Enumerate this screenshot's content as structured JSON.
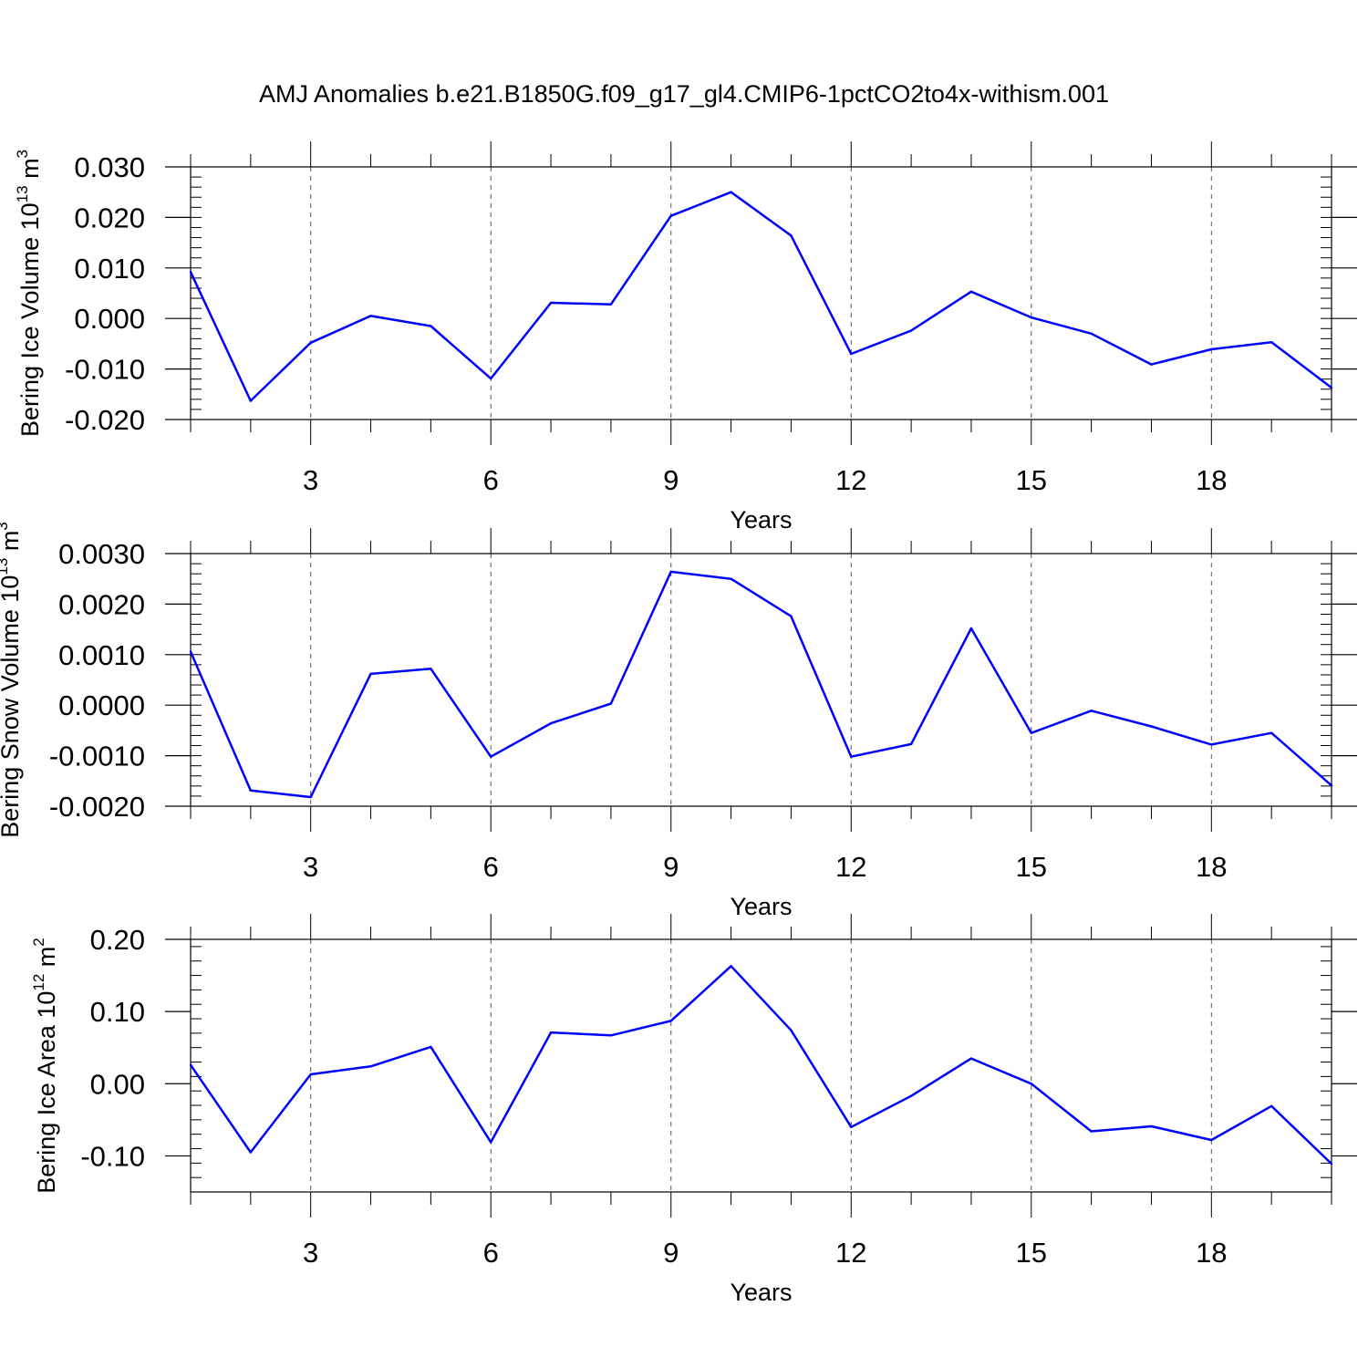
{
  "figure": {
    "title": "AMJ Anomalies b.e21.B1850G.f09_g17_gl4.CMIP6-1pctCO2to4x-withism.001"
  },
  "colors": {
    "line": "#0000ff",
    "axis": "#000000",
    "grid": "#555555"
  },
  "chart_data": [
    {
      "type": "line",
      "ylabel": "Bering Ice Volume 10",
      "ylabel_exp": "13",
      "ylabel_unit": "m",
      "ylabel_unit_exp": "3",
      "xlabel": "Years",
      "xlim": [
        1,
        20
      ],
      "ylim": [
        -0.02,
        0.03
      ],
      "yticks": [
        -0.02,
        -0.01,
        0.0,
        0.01,
        0.02,
        0.03
      ],
      "ytick_labels": [
        "-0.020",
        "-0.010",
        "0.000",
        "0.010",
        "0.020",
        "0.030"
      ],
      "xticks": [
        3,
        6,
        9,
        12,
        15,
        18
      ],
      "xtick_labels": [
        "3",
        "6",
        "9",
        "12",
        "15",
        "18"
      ],
      "x": [
        1,
        2,
        3,
        4,
        5,
        6,
        7,
        8,
        9,
        10,
        11,
        12,
        13,
        14,
        15,
        16,
        17,
        18,
        19,
        20
      ],
      "values": [
        0.0092,
        -0.0163,
        -0.0048,
        0.0005,
        -0.0015,
        -0.0119,
        0.0031,
        0.0028,
        0.0203,
        0.025,
        0.0164,
        -0.007,
        -0.0024,
        0.0053,
        0.0002,
        -0.003,
        -0.0091,
        -0.0061,
        -0.0047,
        -0.0137
      ]
    },
    {
      "type": "line",
      "ylabel": "Bering Snow Volume 10",
      "ylabel_exp": "13",
      "ylabel_unit": "m",
      "ylabel_unit_exp": "3",
      "xlabel": "Years",
      "xlim": [
        1,
        20
      ],
      "ylim": [
        -0.002,
        0.003
      ],
      "yticks": [
        -0.002,
        -0.001,
        0.0,
        0.001,
        0.002,
        0.003
      ],
      "ytick_labels": [
        "-0.0020",
        "-0.0010",
        "0.0000",
        "0.0010",
        "0.0020",
        "0.0030"
      ],
      "xticks": [
        3,
        6,
        9,
        12,
        15,
        18
      ],
      "xtick_labels": [
        "3",
        "6",
        "9",
        "12",
        "15",
        "18"
      ],
      "x": [
        1,
        2,
        3,
        4,
        5,
        6,
        7,
        8,
        9,
        10,
        11,
        12,
        13,
        14,
        15,
        16,
        17,
        18,
        19,
        20
      ],
      "values": [
        0.00106,
        -0.00169,
        -0.00182,
        0.00062,
        0.00072,
        -0.00102,
        -0.00036,
        3e-05,
        0.00264,
        0.0025,
        0.00176,
        -0.00102,
        -0.00077,
        0.00152,
        -0.00055,
        -0.00011,
        -0.00042,
        -0.00078,
        -0.00055,
        -0.00159
      ]
    },
    {
      "type": "line",
      "ylabel": "Bering Ice Area 10",
      "ylabel_exp": "12",
      "ylabel_unit": "m",
      "ylabel_unit_exp": "2",
      "xlabel": "Years",
      "xlim": [
        1,
        20
      ],
      "ylim": [
        -0.15,
        0.2
      ],
      "yticks": [
        -0.1,
        0.0,
        0.1,
        0.2
      ],
      "ytick_labels": [
        "-0.10",
        "0.00",
        "0.10",
        "0.20"
      ],
      "xticks": [
        3,
        6,
        9,
        12,
        15,
        18
      ],
      "xtick_labels": [
        "3",
        "6",
        "9",
        "12",
        "15",
        "18"
      ],
      "x": [
        1,
        2,
        3,
        4,
        5,
        6,
        7,
        8,
        9,
        10,
        11,
        12,
        13,
        14,
        15,
        16,
        17,
        18,
        19,
        20
      ],
      "values": [
        0.026,
        -0.095,
        0.013,
        0.024,
        0.051,
        -0.081,
        0.071,
        0.067,
        0.087,
        0.163,
        0.074,
        -0.06,
        -0.017,
        0.035,
        0.0,
        -0.066,
        -0.059,
        -0.078,
        -0.031,
        -0.111
      ]
    }
  ]
}
